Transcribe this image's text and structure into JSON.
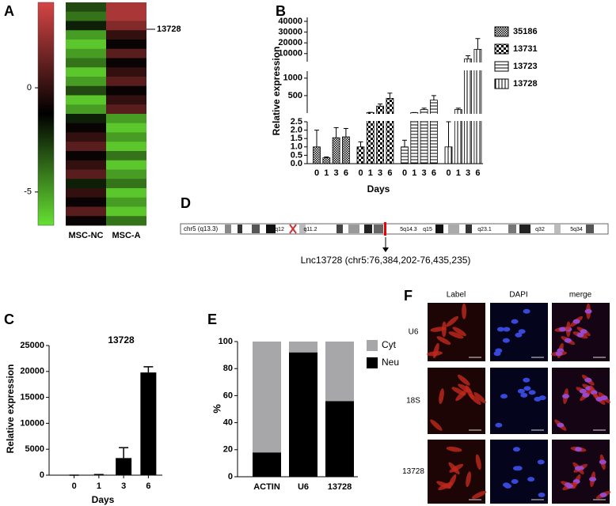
{
  "chart_data": [
    {
      "type": "heatmap",
      "panel": "A",
      "annotation": "13728",
      "clim": [
        -6.6,
        4.1
      ],
      "cticks": [
        0,
        -5
      ],
      "colormap": [
        "#66e033",
        "#000000",
        "#d64545"
      ],
      "series": [
        {
          "name": "MSC-NC",
          "values": [
            -3,
            -4,
            -2,
            -5,
            -6,
            -5,
            -4,
            -6,
            -5,
            -3,
            -6,
            -5,
            -2,
            -1,
            0,
            1,
            -1,
            0,
            1,
            -2,
            0,
            -1,
            1,
            -1
          ]
        },
        {
          "name": "MSC-A",
          "values": [
            3,
            3,
            2,
            0,
            -1,
            1,
            -1,
            0,
            1,
            -1,
            0,
            1,
            -5,
            -6,
            -5,
            -6,
            -4,
            -6,
            -5,
            -4,
            -6,
            -5,
            -6,
            -4
          ]
        }
      ]
    },
    {
      "type": "broken-bar",
      "panel": "B",
      "ylabel": "Relative expression",
      "xlabel": "Days",
      "categories": [
        "0",
        "1",
        "3",
        "6"
      ],
      "segments": [
        {
          "ylim": [
            0,
            2.5
          ],
          "yticks": [
            {
              "value": 0,
              "label": "0.0"
            },
            0.5,
            {
              "value": 1,
              "label": "1.0"
            },
            1.5,
            {
              "value": 2,
              "label": "2.0"
            },
            2.5
          ]
        },
        {
          "ylim": [
            0,
            1200
          ],
          "yticks": [
            500,
            1000
          ]
        },
        {
          "ylim": [
            2500,
            40000
          ],
          "yticks": [
            10000,
            20000,
            30000,
            40000
          ]
        }
      ],
      "series": [
        {
          "name": "35186",
          "pattern": "fine",
          "values": [
            1.0,
            0.35,
            1.55,
            1.6
          ],
          "errors": [
            1.0,
            0.05,
            0.6,
            0.5
          ]
        },
        {
          "name": "13731",
          "pattern": "checker",
          "values": [
            1.0,
            15,
            200,
            420
          ],
          "errors": [
            0.3,
            5,
            60,
            150
          ]
        },
        {
          "name": "13723",
          "pattern": "hlines",
          "values": [
            1.0,
            10,
            100,
            370
          ],
          "errors": [
            0.4,
            5,
            40,
            130
          ]
        },
        {
          "name": "13728",
          "pattern": "vlines",
          "values": [
            1.0,
            100,
            5000,
            14000
          ],
          "errors": [
            1.5,
            40,
            3000,
            10000
          ]
        }
      ]
    },
    {
      "type": "bar",
      "panel": "C",
      "title": "13728",
      "ylabel": "Relative expression",
      "xlabel": "Days",
      "categories": [
        "0",
        "1",
        "3",
        "6"
      ],
      "values": [
        0,
        80,
        3300,
        19800
      ],
      "errors": [
        0,
        40,
        2000,
        1100
      ],
      "color": "#000000",
      "ylim": [
        0,
        25000
      ],
      "yticks": [
        0,
        5000,
        10000,
        15000,
        20000,
        25000
      ]
    },
    {
      "type": "stacked-bar",
      "panel": "E",
      "ylabel": "%",
      "categories": [
        "ACTIN",
        "U6",
        "13728"
      ],
      "ylim": [
        0,
        100
      ],
      "yticks": [
        0,
        20,
        40,
        60,
        80,
        100
      ],
      "series": [
        {
          "name": "Neu",
          "color": "#000000",
          "values": [
            18,
            92,
            56
          ]
        },
        {
          "name": "Cyt",
          "color": "#a7a7aa",
          "values": [
            82,
            8,
            44
          ]
        }
      ]
    }
  ],
  "ideogram": {
    "panel": "D",
    "chromosome_label": "chr5 (q13.3)",
    "band_labels": [
      "q12",
      "q11.2",
      "5q14.3",
      "q15",
      "q23.1",
      "q32",
      "5q34"
    ],
    "locus_label": "Lnc13728 (chr5:76,384,202-76,435,235)"
  },
  "microscopy": {
    "panel": "F",
    "columns": [
      "Label",
      "DAPI",
      "merge"
    ],
    "rows": [
      "U6",
      "18S",
      "13728"
    ]
  }
}
